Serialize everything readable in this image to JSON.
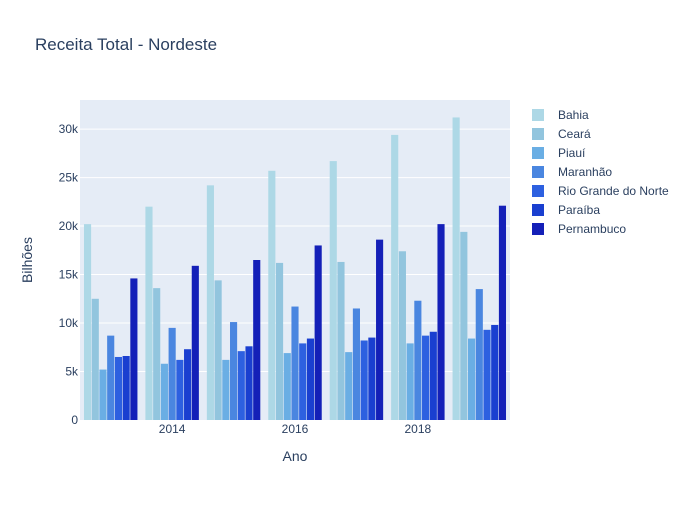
{
  "chart_data": {
    "type": "bar",
    "title": "Receita Total - Nordeste",
    "xlabel": "Ano",
    "ylabel": "Bilhões",
    "x": [
      2013,
      2014,
      2015,
      2016,
      2017,
      2018,
      2019
    ],
    "x_ticks": [
      "2014",
      "2016",
      "2018"
    ],
    "y_ticks": [
      "0",
      "5k",
      "10k",
      "15k",
      "20k",
      "25k",
      "30k"
    ],
    "ylim": [
      0,
      33000
    ],
    "grid": true,
    "legend_position": "right",
    "series": [
      {
        "name": "Bahia",
        "color": "#add8e6",
        "values": [
          20200,
          22000,
          24200,
          25700,
          26700,
          29400,
          31200
        ]
      },
      {
        "name": "Ceará",
        "color": "#92c5de",
        "values": [
          12500,
          13600,
          14400,
          16200,
          16300,
          17400,
          19400
        ]
      },
      {
        "name": "Piauí",
        "color": "#6aaee4",
        "values": [
          5200,
          5800,
          6200,
          6900,
          7000,
          7900,
          8400
        ]
      },
      {
        "name": "Maranhão",
        "color": "#4a86e0",
        "values": [
          8700,
          9500,
          10100,
          11700,
          11500,
          12300,
          13500
        ]
      },
      {
        "name": "Rio Grande do Norte",
        "color": "#2d60e0",
        "values": [
          6500,
          6200,
          7100,
          7900,
          8200,
          8700,
          9300
        ]
      },
      {
        "name": "Paraíba",
        "color": "#1a3fd0",
        "values": [
          6600,
          7300,
          7600,
          8400,
          8500,
          9100,
          9800
        ]
      },
      {
        "name": "Pernambuco",
        "color": "#1420b8",
        "values": [
          14600,
          15900,
          16500,
          18000,
          18600,
          20200,
          22100
        ]
      }
    ]
  }
}
